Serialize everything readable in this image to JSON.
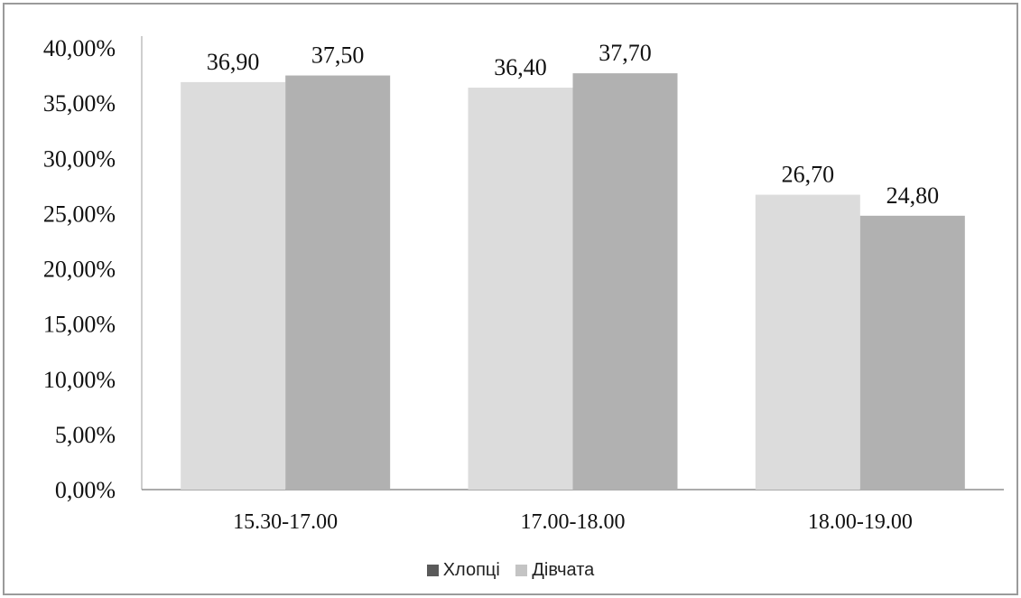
{
  "chart_data": {
    "type": "bar",
    "categories": [
      "15.30-17.00",
      "17.00-18.00",
      "18.00-19.00"
    ],
    "series": [
      {
        "name": "Дівчата",
        "values": [
          36.9,
          36.4,
          26.7
        ],
        "labels": [
          "36,90",
          "36,40",
          "26,70"
        ],
        "color": "#dcdcdc"
      },
      {
        "name": "Хлопці",
        "values": [
          37.5,
          37.7,
          24.8
        ],
        "labels": [
          "37,50",
          "37,70",
          "24,80"
        ],
        "color": "#b1b1b1"
      }
    ],
    "yticks": [
      "0,00%",
      "5,00%",
      "10,00%",
      "15,00%",
      "20,00%",
      "25,00%",
      "30,00%",
      "35,00%",
      "40,00%"
    ],
    "ylim": [
      0,
      40
    ],
    "legend": {
      "placement": "bottom",
      "entries": [
        {
          "label": "Хлопці",
          "color": "#5a5a5a"
        },
        {
          "label": "Дівчата",
          "color": "#c4c4c4"
        }
      ]
    },
    "grid": false
  }
}
